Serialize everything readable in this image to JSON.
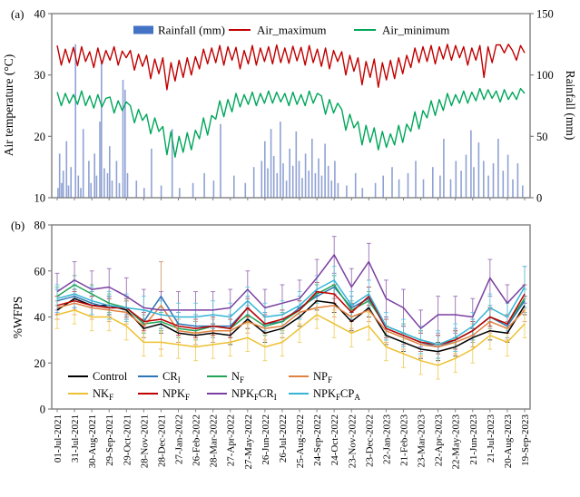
{
  "figure": {
    "panel_a_tag": "(a)",
    "panel_b_tag": "(b)",
    "frame_color": "#808080"
  },
  "chart_data": [
    {
      "type": "bar",
      "panel": "a",
      "left_axis_label": "Air temperature (°C)",
      "right_axis_label": "Rainfall (mm)",
      "left_ticks": [
        10,
        20,
        30,
        40
      ],
      "left_range": [
        10,
        40
      ],
      "right_ticks": [
        0,
        50,
        100,
        150
      ],
      "right_range": [
        0,
        150
      ],
      "legend": [
        {
          "label": "Rainfall (mm)",
          "color": "#4472c4",
          "swatch": "bar"
        },
        {
          "label": "Air_maximum",
          "color": "#c00000",
          "swatch": "line"
        },
        {
          "label": "Air_minimum",
          "color": "#00a65a",
          "swatch": "line"
        }
      ],
      "bar_color": "#8fa2d4",
      "x_weeks": 115,
      "air_maximum": [
        34.8,
        31.6,
        34.2,
        32.0,
        34.5,
        31.5,
        34.6,
        32.2,
        33.8,
        31.2,
        34.4,
        31.8,
        34.0,
        32.4,
        34.6,
        31.6,
        33.9,
        32.8,
        34.0,
        30.8,
        33.4,
        31.4,
        33.2,
        29.4,
        32.6,
        30.2,
        32.8,
        27.6,
        32.0,
        29.0,
        32.4,
        29.6,
        32.8,
        30.0,
        33.0,
        31.0,
        34.2,
        31.8,
        34.4,
        32.0,
        34.8,
        31.6,
        34.6,
        32.4,
        34.5,
        31.0,
        34.0,
        31.8,
        34.8,
        31.6,
        34.4,
        32.2,
        34.6,
        31.8,
        34.9,
        32.0,
        34.4,
        31.9,
        34.7,
        32.3,
        34.5,
        31.6,
        34.8,
        32.0,
        34.2,
        31.4,
        34.4,
        31.0,
        34.0,
        32.2,
        33.8,
        30.0,
        33.2,
        30.6,
        32.8,
        28.4,
        32.2,
        29.6,
        32.6,
        28.0,
        32.0,
        29.2,
        32.4,
        29.4,
        32.8,
        30.2,
        33.2,
        31.2,
        34.4,
        32.0,
        34.6,
        32.2,
        34.8,
        31.8,
        34.6,
        32.6,
        35.0,
        32.4,
        34.8,
        32.8,
        34.6,
        31.6,
        34.4,
        32.4,
        34.8,
        29.6,
        34.6,
        32.0,
        34.9,
        34.9,
        33.6,
        35.0,
        34.0,
        32.4,
        34.8,
        33.6
      ],
      "air_minimum": [
        27.2,
        25.0,
        27.0,
        25.4,
        26.8,
        25.2,
        27.4,
        25.0,
        26.6,
        24.6,
        26.8,
        24.8,
        26.2,
        26.4,
        23.8,
        25.8,
        24.2,
        25.6,
        25.0,
        22.2,
        24.4,
        22.6,
        23.6,
        20.4,
        23.0,
        20.8,
        21.6,
        17.0,
        20.8,
        16.6,
        20.0,
        17.4,
        20.6,
        17.8,
        21.0,
        19.6,
        23.0,
        20.2,
        23.4,
        22.8,
        25.8,
        23.2,
        26.0,
        24.0,
        27.0,
        24.8,
        26.8,
        25.2,
        27.2,
        25.0,
        27.0,
        25.4,
        27.4,
        25.4,
        27.2,
        25.6,
        27.0,
        25.0,
        27.2,
        25.2,
        26.8,
        25.0,
        27.4,
        25.4,
        27.0,
        26.6,
        23.6,
        26.0,
        23.8,
        25.4,
        24.4,
        21.0,
        23.6,
        21.4,
        22.4,
        18.6,
        21.8,
        19.0,
        21.4,
        17.8,
        20.8,
        18.2,
        20.4,
        18.6,
        21.8,
        19.0,
        22.0,
        20.8,
        24.0,
        21.2,
        24.2,
        23.0,
        25.8,
        23.4,
        26.0,
        24.2,
        27.0,
        25.0,
        26.8,
        25.4,
        27.4,
        25.4,
        27.2,
        25.8,
        27.8,
        26.0,
        27.6,
        26.2,
        27.4,
        25.6,
        27.6,
        26.0,
        27.2,
        26.0,
        27.8,
        27.0
      ],
      "rain_events": [
        [
          0.2,
          8
        ],
        [
          0.6,
          36
        ],
        [
          1.1,
          12
        ],
        [
          1.5,
          22
        ],
        [
          2.3,
          46
        ],
        [
          2.8,
          10
        ],
        [
          3.4,
          25
        ],
        [
          4.5,
          125
        ],
        [
          5.2,
          18
        ],
        [
          5.8,
          8
        ],
        [
          6.4,
          56
        ],
        [
          7.8,
          30
        ],
        [
          8.3,
          12
        ],
        [
          9.2,
          36
        ],
        [
          9.7,
          18
        ],
        [
          10.5,
          62
        ],
        [
          10.9,
          112
        ],
        [
          11.6,
          24
        ],
        [
          12.4,
          20
        ],
        [
          12.9,
          42
        ],
        [
          13.5,
          14
        ],
        [
          14.6,
          30
        ],
        [
          15.3,
          12
        ],
        [
          16.2,
          96
        ],
        [
          16.7,
          88
        ],
        [
          17.3,
          20
        ],
        [
          19.5,
          14
        ],
        [
          21.4,
          8
        ],
        [
          23.2,
          40
        ],
        [
          25.6,
          10
        ],
        [
          28.3,
          56
        ],
        [
          30.1,
          8
        ],
        [
          33.4,
          12
        ],
        [
          36.2,
          20
        ],
        [
          38.5,
          14
        ],
        [
          40.2,
          60
        ],
        [
          43.5,
          18
        ],
        [
          46.3,
          12
        ],
        [
          48.4,
          25
        ],
        [
          50.3,
          30
        ],
        [
          51.1,
          46
        ],
        [
          51.8,
          24
        ],
        [
          52.6,
          56
        ],
        [
          53.3,
          34
        ],
        [
          54.1,
          20
        ],
        [
          54.9,
          62
        ],
        [
          55.6,
          28
        ],
        [
          56.4,
          14
        ],
        [
          57.2,
          40
        ],
        [
          58.0,
          26
        ],
        [
          58.8,
          54
        ],
        [
          59.5,
          30
        ],
        [
          60.3,
          16
        ],
        [
          61.1,
          36
        ],
        [
          61.9,
          22
        ],
        [
          62.7,
          48
        ],
        [
          63.5,
          20
        ],
        [
          64.3,
          32
        ],
        [
          65.1,
          18
        ],
        [
          65.9,
          44
        ],
        [
          66.7,
          26
        ],
        [
          67.5,
          14
        ],
        [
          68.3,
          30
        ],
        [
          69.1,
          12
        ],
        [
          71.2,
          10
        ],
        [
          73.4,
          20
        ],
        [
          75.1,
          8
        ],
        [
          78.3,
          12
        ],
        [
          80.2,
          18
        ],
        [
          82.4,
          25
        ],
        [
          84.1,
          15
        ],
        [
          86.3,
          20
        ],
        [
          88.2,
          30
        ],
        [
          90.1,
          15
        ],
        [
          92.4,
          25
        ],
        [
          94.2,
          18
        ],
        [
          95.1,
          48
        ],
        [
          96.8,
          15
        ],
        [
          98.1,
          30
        ],
        [
          99.4,
          22
        ],
        [
          100.6,
          35
        ],
        [
          101.8,
          55
        ],
        [
          102.5,
          25
        ],
        [
          103.7,
          45
        ],
        [
          104.9,
          30
        ],
        [
          106.1,
          18
        ],
        [
          107.3,
          28
        ],
        [
          108.5,
          48
        ],
        [
          109.7,
          22
        ],
        [
          110.9,
          35
        ],
        [
          112.1,
          15
        ],
        [
          113.3,
          28
        ],
        [
          114.5,
          10
        ]
      ]
    },
    {
      "type": "line",
      "panel": "b",
      "ylabel": "%WFPS",
      "y_ticks": [
        0,
        20,
        40,
        60,
        80
      ],
      "ylim": [
        0,
        80
      ],
      "categories": [
        "01-Jul-2021",
        "31-Jul-2021",
        "30-Aug-2021",
        "29-Sep-2021",
        "29-Oct-2021",
        "28-Nov-2021",
        "28-Dec-2021",
        "27-Jan-2022",
        "26-Feb-2022",
        "28-Mar-2022",
        "27-Apr-2022",
        "27-May-2022",
        "26-Jun-2022",
        "26-Jul-2022",
        "25-Aug-2022",
        "24-Sep-2022",
        "24-Oct-2022",
        "23-Nov-2022",
        "23-Dec-2022",
        "22-Jan-2023",
        "21-Feb-2023",
        "23-Mar-2023",
        "22-Apr-2023",
        "22-May-2023",
        "21-Jun-2023",
        "21-Jul-2023",
        "20-Aug-2023",
        "19-Sep-2023"
      ],
      "series": [
        {
          "name": "Control",
          "parts": [
            {
              "t": "Control"
            }
          ],
          "color": "#000000",
          "err": 4,
          "err_spikes": {},
          "values": [
            43,
            48,
            45,
            45,
            43,
            35,
            37,
            33,
            32,
            33,
            32,
            39,
            33,
            35,
            40,
            47,
            46,
            38,
            44,
            32,
            29,
            26,
            25,
            27,
            31,
            34,
            33,
            45
          ]
        },
        {
          "name": "CR_I",
          "parts": [
            {
              "t": "CR"
            },
            {
              "s": "I"
            }
          ],
          "color": "#2e75b6",
          "err": 5,
          "err_spikes": {
            "6": 15
          },
          "values": [
            47,
            49,
            46,
            44,
            44,
            38,
            49,
            37,
            36,
            36,
            36,
            44,
            37,
            38,
            44,
            49,
            53,
            44,
            48,
            35,
            32,
            29,
            27,
            30,
            34,
            40,
            36,
            47
          ]
        },
        {
          "name": "N_F",
          "parts": [
            {
              "t": "N"
            },
            {
              "s": "F"
            }
          ],
          "color": "#22a457",
          "err": 4,
          "err_spikes": {},
          "values": [
            49,
            54,
            50,
            46,
            44,
            37,
            38,
            35,
            34,
            36,
            35,
            41,
            36,
            38,
            43,
            50,
            54,
            43,
            47,
            36,
            33,
            30,
            28,
            30,
            34,
            40,
            37,
            48
          ]
        },
        {
          "name": "NP_F",
          "parts": [
            {
              "t": "NP"
            },
            {
              "s": "F"
            }
          ],
          "color": "#e0813f",
          "err": 5,
          "err_spikes": {
            "6": 19
          },
          "values": [
            44,
            46,
            44,
            43,
            42,
            36,
            45,
            34,
            33,
            34,
            34,
            38,
            35,
            36,
            42,
            44,
            45,
            40,
            43,
            34,
            31,
            28,
            27,
            29,
            32,
            38,
            35,
            43
          ]
        },
        {
          "name": "NK_F",
          "parts": [
            {
              "t": "NK"
            },
            {
              "s": "F"
            }
          ],
          "color": "#edc131",
          "err": 6,
          "err_spikes": {},
          "values": [
            41,
            43,
            40,
            40,
            36,
            29,
            29,
            28,
            27,
            28,
            29,
            31,
            27,
            29,
            35,
            41,
            37,
            33,
            36,
            27,
            24,
            21,
            19,
            22,
            26,
            32,
            29,
            37
          ]
        },
        {
          "name": "NPK_F",
          "parts": [
            {
              "t": "NPK"
            },
            {
              "s": "F"
            }
          ],
          "color": "#c00000",
          "err": 4,
          "err_spikes": {},
          "values": [
            45,
            47,
            45,
            44,
            44,
            38,
            39,
            36,
            35,
            36,
            35,
            44,
            37,
            39,
            43,
            51,
            50,
            42,
            49,
            35,
            32,
            29,
            28,
            30,
            34,
            40,
            37,
            50
          ]
        },
        {
          "name": "NPK_FCR_I",
          "parts": [
            {
              "t": "NPK"
            },
            {
              "s": "F"
            },
            {
              "t": "CR"
            },
            {
              "s": "I"
            }
          ],
          "color": "#7a3fa0",
          "err": 8,
          "err_spikes": {
            "16": 8,
            "18": 8
          },
          "values": [
            51,
            56,
            52,
            53,
            49,
            44,
            43,
            43,
            43,
            43,
            44,
            52,
            44,
            46,
            48,
            57,
            67,
            53,
            64,
            48,
            44,
            35,
            41,
            41,
            40,
            57,
            46,
            54
          ]
        },
        {
          "name": "NPK_FCP_A",
          "parts": [
            {
              "t": "NPK"
            },
            {
              "s": "F"
            },
            {
              "t": "CP"
            },
            {
              "s": "A"
            }
          ],
          "color": "#35b4d6",
          "err": 6,
          "err_spikes": {
            "27": 9
          },
          "values": [
            48,
            50,
            47,
            45,
            44,
            43,
            41,
            40,
            40,
            41,
            40,
            47,
            40,
            41,
            45,
            52,
            56,
            45,
            50,
            36,
            33,
            30,
            28,
            31,
            36,
            44,
            40,
            53
          ]
        }
      ]
    }
  ]
}
